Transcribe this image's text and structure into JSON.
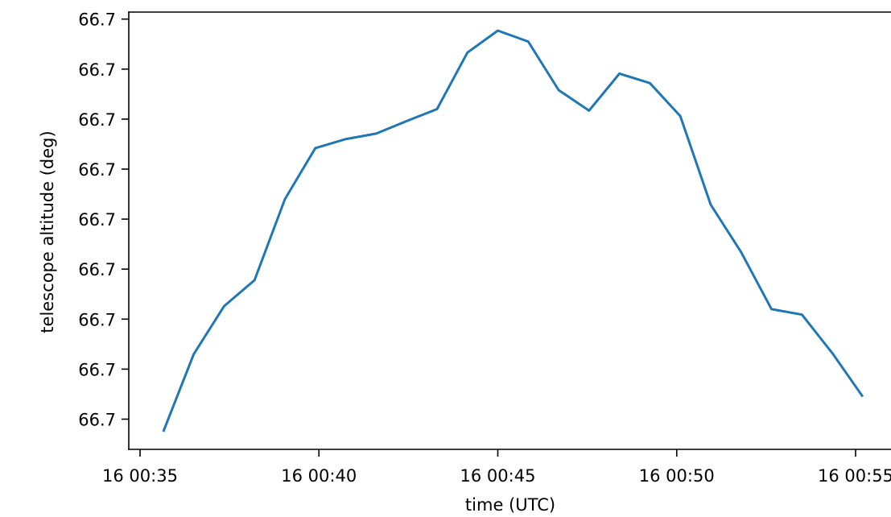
{
  "chart_data": {
    "type": "line",
    "xlabel": "time (UTC)",
    "ylabel": "telescope altitude (deg)",
    "x_tick_labels": [
      "16 00:35",
      "16 00:40",
      "16 00:45",
      "16 00:50",
      "16 00:55"
    ],
    "x_tick_minutes": [
      35,
      40,
      45,
      50,
      55
    ],
    "y_tick_labels": [
      "66.7",
      "66.7",
      "66.7",
      "66.7",
      "66.7",
      "66.7",
      "66.7",
      "66.7",
      "66.7"
    ],
    "y_tick_values": [
      0,
      1,
      2,
      3,
      4,
      5,
      6,
      7,
      8
    ],
    "xlim": [
      34.65,
      55.1
    ],
    "ylim": [
      -0.62,
      8.15
    ],
    "grid": false,
    "series": [
      {
        "color": "#1f77b4",
        "x": [
          35.65,
          36.5,
          37.35,
          38.2,
          39.05,
          39.9,
          40.75,
          41.6,
          42.45,
          43.3,
          44.15,
          45.0,
          45.85,
          46.7,
          47.55,
          48.4,
          49.25,
          50.1,
          50.95,
          51.8,
          52.65,
          53.5,
          54.35,
          55.2
        ],
        "y": [
          -0.25,
          1.3,
          2.26,
          2.78,
          4.4,
          5.42,
          5.6,
          5.71,
          5.96,
          6.2,
          7.33,
          7.77,
          7.55,
          6.58,
          6.17,
          6.91,
          6.72,
          6.06,
          4.29,
          3.34,
          2.2,
          2.09,
          1.32,
          0.45
        ]
      }
    ]
  }
}
